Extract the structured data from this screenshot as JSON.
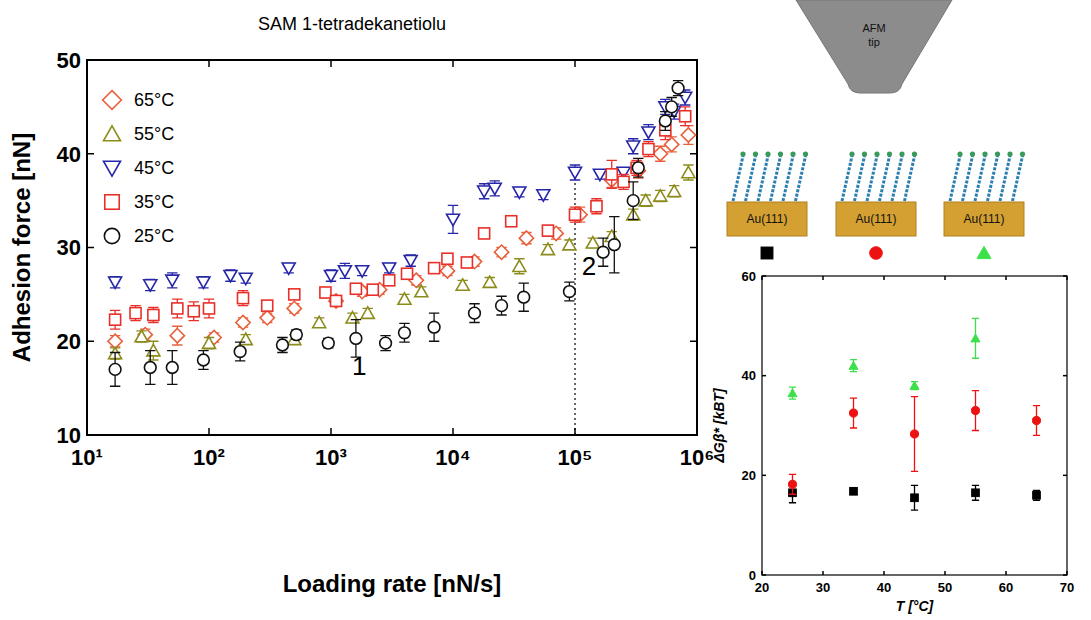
{
  "chart_data": [
    {
      "type": "scatter",
      "title": "SAM 1-tetradekanetiolu",
      "x_label": "Loading rate [nN/s]",
      "y_label": "Adhesion force [nN]",
      "log": "x",
      "xlim": [
        10,
        1000000
      ],
      "xticks": [
        {
          "value": 10,
          "label": "10¹"
        },
        {
          "value": 100,
          "label": "10²"
        },
        {
          "value": 1000,
          "label": "10³"
        },
        {
          "value": 10000,
          "label": "10⁴"
        },
        {
          "value": 100000,
          "label": "10⁵"
        },
        {
          "value": 1000000,
          "label": "10⁶"
        }
      ],
      "ylim": [
        10,
        50
      ],
      "yticks": [
        10,
        20,
        30,
        40,
        50
      ],
      "grid": false,
      "legend": "upper left",
      "reference_lines": [
        {
          "x": 100000,
          "y": [
            10,
            37.5
          ]
        }
      ],
      "annotations": [
        {
          "text": "1",
          "x": 1700,
          "y": 16.4
        },
        {
          "text": "2",
          "x": 130000,
          "y": 27.1
        }
      ],
      "series": [
        {
          "name": "65°C",
          "color": "#e8603c",
          "marker": "open-diamond",
          "x": [
            17,
            30,
            55,
            110,
            190,
            300,
            500,
            1100,
            1800,
            2500,
            5000,
            9000,
            15000,
            25000,
            40000,
            70000,
            110000,
            200000,
            330000,
            500000,
            620000,
            850000
          ],
          "values": [
            20,
            20.7,
            20.6,
            20.4,
            22,
            22.5,
            23.5,
            24.3,
            25.3,
            25.5,
            26.5,
            27.5,
            28.5,
            29.5,
            31,
            31.5,
            33.5,
            37.2,
            38.2,
            40,
            41,
            42
          ],
          "errors": [
            0.6,
            0.6,
            1,
            0.5,
            0.5,
            0.5,
            0.5,
            0.5,
            0.5,
            0.5,
            0.5,
            0.5,
            0.5,
            0.5,
            0.6,
            0.6,
            0.8,
            0.8,
            0.8,
            0.8,
            0.8,
            1
          ]
        },
        {
          "name": "55°C",
          "color": "#8c8c1c",
          "marker": "open-triangle",
          "x": [
            17,
            28,
            35,
            100,
            200,
            500,
            800,
            1500,
            2000,
            4000,
            5500,
            12000,
            20000,
            35000,
            60000,
            90000,
            140000,
            200000,
            300000,
            380000,
            500000,
            650000,
            850000
          ],
          "values": [
            18.7,
            20.5,
            19,
            19.8,
            20.2,
            20.2,
            22,
            22.5,
            23,
            24.5,
            25.3,
            26,
            26.3,
            28,
            29.8,
            30.3,
            30.5,
            31.2,
            33.5,
            35,
            35.5,
            36,
            38
          ],
          "errors": [
            0.6,
            0.6,
            1,
            0.6,
            0.5,
            0.5,
            0.5,
            0.5,
            0.5,
            0.5,
            0.5,
            0.5,
            0.5,
            0.8,
            0.5,
            0.5,
            0.5,
            0.5,
            0.6,
            0.6,
            0.6,
            0.6,
            0.8
          ]
        },
        {
          "name": "45°C",
          "color": "#2626a8",
          "marker": "open-triangle-down",
          "x": [
            17,
            33,
            50,
            90,
            150,
            200,
            450,
            1000,
            1300,
            1800,
            3000,
            4500,
            10000,
            18000,
            22000,
            35000,
            55000,
            100000,
            160000,
            250000,
            300000,
            400000,
            550000,
            650000,
            800000
          ],
          "values": [
            26.3,
            26,
            26.5,
            26.3,
            27,
            26.7,
            27.8,
            27,
            27.5,
            27.5,
            27.8,
            28.6,
            33,
            36,
            36.3,
            35.9,
            35.6,
            38,
            37.8,
            38,
            40.8,
            42.3,
            45,
            44.5,
            46
          ],
          "errors": [
            0.6,
            0.6,
            0.8,
            0.6,
            0.6,
            0.5,
            0.5,
            0.6,
            0.8,
            0.5,
            0.5,
            0.6,
            1.5,
            0.8,
            0.8,
            0.5,
            0.5,
            0.8,
            0.5,
            0.5,
            0.8,
            0.8,
            0.8,
            0.8,
            0.8
          ]
        },
        {
          "name": "35°C",
          "color": "#e8302a",
          "marker": "open-square",
          "x": [
            17,
            25,
            35,
            55,
            75,
            100,
            190,
            300,
            500,
            900,
            1100,
            1600,
            2200,
            3000,
            4200,
            7000,
            9000,
            13000,
            18000,
            30000,
            60000,
            100000,
            150000,
            200000,
            250000,
            320000,
            400000,
            550000,
            800000
          ],
          "values": [
            22.3,
            23,
            22.8,
            23.5,
            23.2,
            23.5,
            24.6,
            23.8,
            25,
            25.2,
            24.3,
            25.6,
            25.5,
            26.5,
            27.2,
            27.8,
            28.8,
            28.4,
            31.5,
            32.8,
            31.8,
            33.5,
            34.4,
            37.8,
            37,
            38.5,
            40.5,
            42.5,
            44
          ],
          "errors": [
            1,
            0.8,
            0.8,
            1,
            1,
            1,
            0.8,
            0.5,
            0.5,
            0.5,
            0.5,
            0.5,
            0.5,
            0.5,
            0.5,
            0.5,
            0.5,
            0.5,
            0.5,
            0.5,
            0.5,
            0.8,
            0.8,
            1.5,
            0.8,
            0.8,
            0.8,
            1,
            1
          ]
        },
        {
          "name": "25°C",
          "color": "#111111",
          "marker": "open-circle",
          "x": [
            17,
            33,
            50,
            90,
            180,
            400,
            520,
            950,
            1600,
            2800,
            4000,
            7000,
            15000,
            25000,
            38000,
            90000,
            170000,
            210000,
            300000,
            330000,
            550000,
            620000,
            700000
          ],
          "values": [
            17,
            17.2,
            17.2,
            18,
            18.9,
            19.6,
            20.7,
            19.8,
            20.3,
            19.8,
            20.9,
            21.5,
            23,
            23.8,
            24.7,
            25.3,
            29.5,
            30.3,
            35,
            38.5,
            43.5,
            45,
            47
          ],
          "errors": [
            1.8,
            1.8,
            1.8,
            1,
            1,
            0.8,
            0.5,
            0.5,
            2,
            0.8,
            1,
            1.5,
            1,
            1,
            1.5,
            1,
            1.5,
            3,
            2,
            1,
            1,
            1,
            0.8
          ]
        }
      ]
    },
    {
      "type": "scatter",
      "x_label": "T [°C]",
      "y_label": "ΔGβ* [kBT]",
      "xlim": [
        20,
        70
      ],
      "xticks": [
        20,
        30,
        40,
        50,
        60,
        70
      ],
      "ylim": [
        0,
        60
      ],
      "yticks": [
        0,
        20,
        40,
        60
      ],
      "grid": false,
      "diagram": {
        "tip_label": "AFM tip",
        "substrate_labels": [
          "Au(111)",
          "Au(111)",
          "Au(111)"
        ]
      },
      "series": [
        {
          "color": "#000000",
          "marker": "square",
          "x": [
            25,
            35,
            45,
            55,
            65
          ],
          "values": [
            16.5,
            16.8,
            15.5,
            16.5,
            16
          ],
          "errors": [
            2,
            0.5,
            2.5,
            1.5,
            1
          ]
        },
        {
          "color": "#ee1111",
          "marker": "circle",
          "x": [
            25,
            35,
            45,
            55,
            65
          ],
          "values": [
            18.2,
            32.5,
            28.3,
            33,
            31
          ],
          "errors": [
            2,
            3,
            7.5,
            4,
            3
          ]
        },
        {
          "color": "#3ee04a",
          "marker": "triangle",
          "x": [
            25,
            35,
            45,
            55
          ],
          "values": [
            36.5,
            42,
            38,
            47.5
          ],
          "errors": [
            1.2,
            1.2,
            0.8,
            4
          ]
        }
      ]
    }
  ]
}
